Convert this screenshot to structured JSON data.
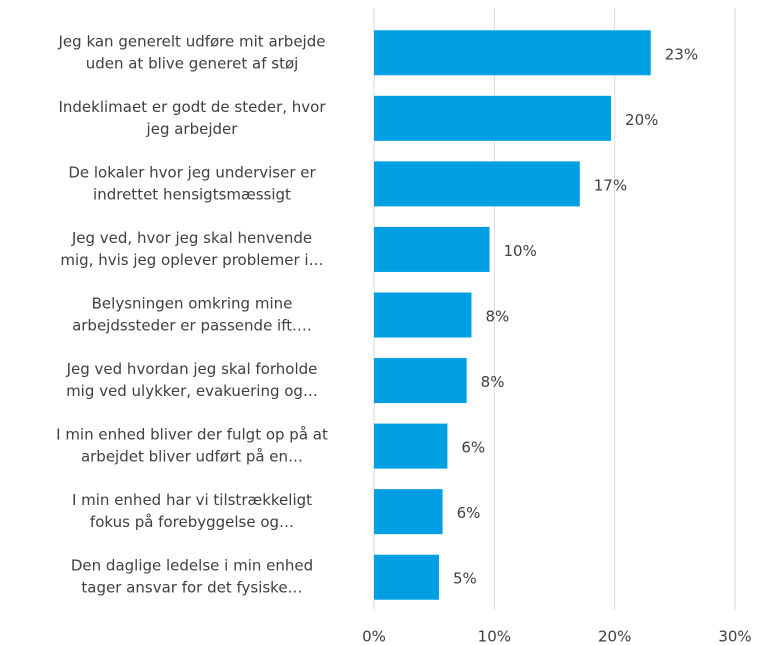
{
  "chart_data": {
    "type": "bar",
    "orientation": "horizontal",
    "categories": [
      [
        "Jeg kan generelt udføre mit arbejde",
        "uden at blive generet af støj"
      ],
      [
        "Indeklimaet er godt de steder, hvor",
        "jeg arbejder"
      ],
      [
        "De lokaler hvor jeg underviser er",
        "indrettet hensigtsmæssigt"
      ],
      [
        "Jeg ved, hvor jeg skal henvende",
        "mig, hvis jeg oplever problemer i…"
      ],
      [
        "Belysningen omkring mine",
        "arbejdssteder er passende ift.…"
      ],
      [
        "Jeg ved hvordan jeg skal forholde",
        "mig ved ulykker, evakuering og…"
      ],
      [
        "I min enhed bliver der fulgt op på at",
        "arbejdet bliver udført på en…"
      ],
      [
        "I min enhed har vi tilstrækkeligt",
        "fokus på forebyggelse og…"
      ],
      [
        "Den daglige ledelse i min enhed",
        "tager ansvar for det fysiske…"
      ]
    ],
    "values": [
      23,
      19.7,
      17.1,
      9.6,
      8.1,
      7.7,
      6.1,
      5.7,
      5.4
    ],
    "value_labels": [
      "23%",
      "20%",
      "17%",
      "10%",
      "8%",
      "8%",
      "6%",
      "6%",
      "5%"
    ],
    "color": "#009fe3",
    "xlim": [
      0,
      30
    ],
    "xticks": [
      {
        "value": 0,
        "label": "0%"
      },
      {
        "value": 10,
        "label": "10%"
      },
      {
        "value": 20,
        "label": "20%"
      },
      {
        "value": 30,
        "label": "30%"
      }
    ],
    "grid": true
  }
}
